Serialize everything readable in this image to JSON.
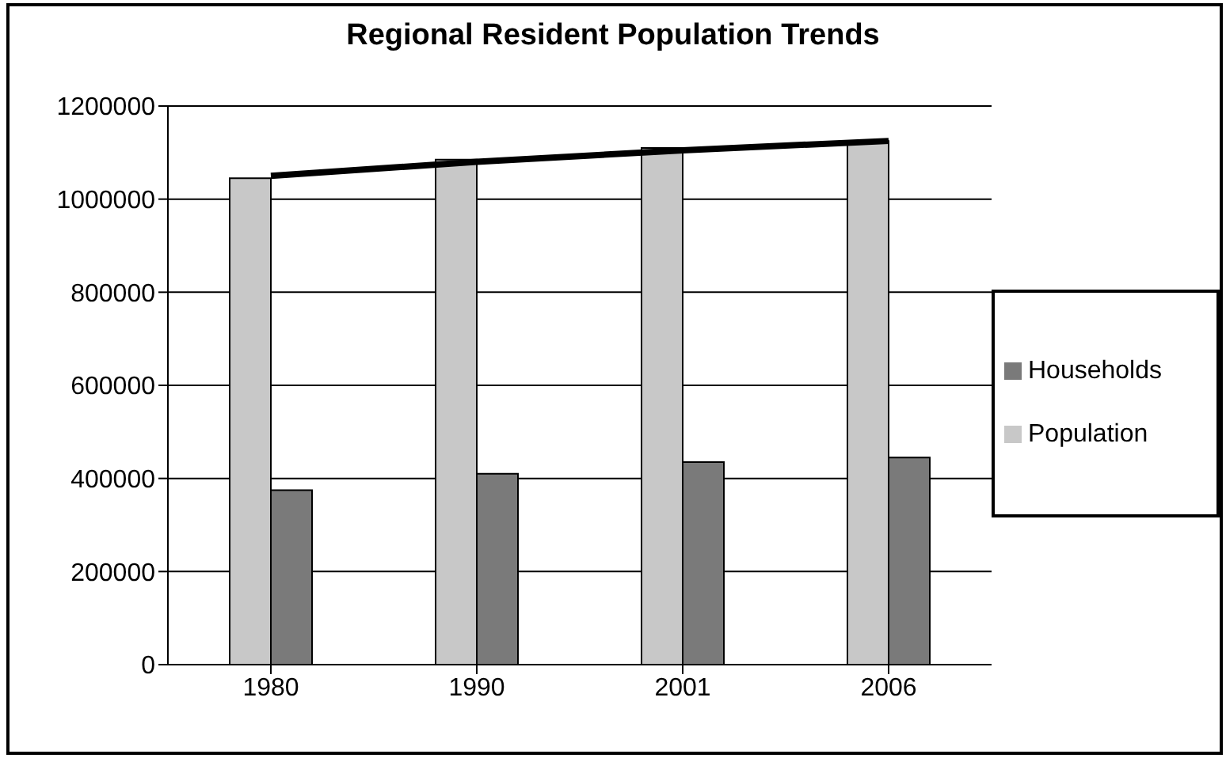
{
  "chart_data": {
    "type": "bar",
    "title": "Regional Resident Population Trends",
    "categories": [
      "1980",
      "1990",
      "2001",
      "2006"
    ],
    "series": [
      {
        "name": "Population",
        "color": "#c8c8c8",
        "values": [
          1045000,
          1085000,
          1110000,
          1125000
        ]
      },
      {
        "name": "Households",
        "color": "#7a7a7a",
        "values": [
          375000,
          410000,
          435000,
          445000
        ]
      },
      {
        "type": "line",
        "color": "#000000",
        "values": [
          1050000,
          1080000,
          1105000,
          1125000
        ]
      }
    ],
    "ylim": [
      0,
      1200000
    ],
    "yticks": [
      0,
      200000,
      400000,
      600000,
      800000,
      1000000,
      1200000
    ],
    "grid": "y",
    "legend": "right",
    "marker": "none",
    "line_style": "solid"
  }
}
